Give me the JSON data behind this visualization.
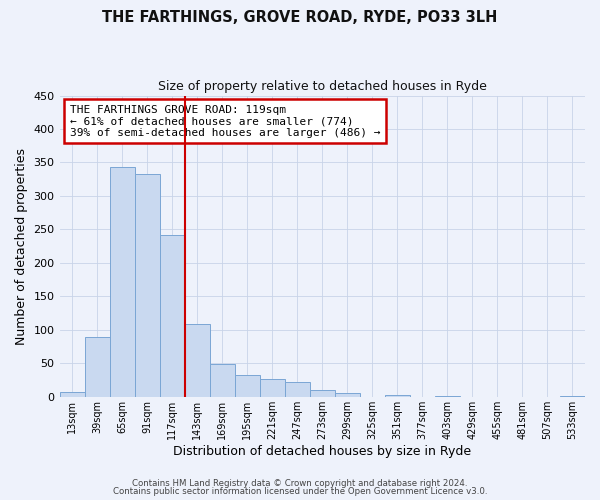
{
  "title": "THE FARTHINGS, GROVE ROAD, RYDE, PO33 3LH",
  "subtitle": "Size of property relative to detached houses in Ryde",
  "xlabel": "Distribution of detached houses by size in Ryde",
  "ylabel": "Number of detached properties",
  "bin_labels": [
    "13sqm",
    "39sqm",
    "65sqm",
    "91sqm",
    "117sqm",
    "143sqm",
    "169sqm",
    "195sqm",
    "221sqm",
    "247sqm",
    "273sqm",
    "299sqm",
    "325sqm",
    "351sqm",
    "377sqm",
    "403sqm",
    "429sqm",
    "455sqm",
    "481sqm",
    "507sqm",
    "533sqm"
  ],
  "bar_values": [
    7,
    89,
    344,
    333,
    242,
    108,
    49,
    33,
    27,
    22,
    10,
    5,
    0,
    2,
    0,
    1,
    0,
    0,
    0,
    0,
    1
  ],
  "bar_color": "#c9d9f0",
  "bar_edge_color": "#7aa6d4",
  "vline_x": 4.5,
  "vline_color": "#cc0000",
  "annotation_box_text": "THE FARTHINGS GROVE ROAD: 119sqm\n← 61% of detached houses are smaller (774)\n39% of semi-detached houses are larger (486) →",
  "annotation_box_edge_color": "#cc0000",
  "footer_line1": "Contains HM Land Registry data © Crown copyright and database right 2024.",
  "footer_line2": "Contains public sector information licensed under the Open Government Licence v3.0.",
  "bg_color": "#eef2fb",
  "plot_bg_color": "#eef2fb",
  "grid_color": "#c8d4e8",
  "ylim": [
    0,
    450
  ],
  "yticks": [
    0,
    50,
    100,
    150,
    200,
    250,
    300,
    350,
    400,
    450
  ],
  "title_fontsize": 10.5,
  "subtitle_fontsize": 9
}
